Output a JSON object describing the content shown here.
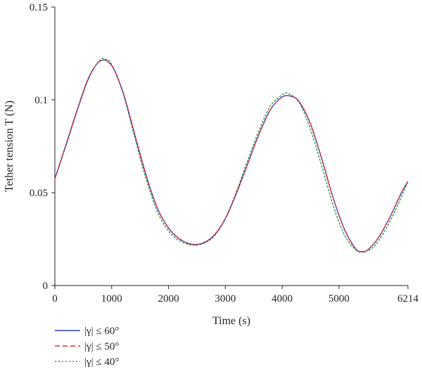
{
  "chart_data": {
    "type": "line",
    "title": "",
    "xlabel": "Time (s)",
    "ylabel": "Tether tension T (N)",
    "xlim": [
      0,
      6214
    ],
    "ylim": [
      0,
      0.15
    ],
    "x_ticks": [
      0,
      1000,
      2000,
      3000,
      4000,
      5000,
      6214
    ],
    "x_tick_labels": [
      "0",
      "1000",
      "2000",
      "3000",
      "4000",
      "5000",
      "6214"
    ],
    "y_ticks": [
      0,
      0.05,
      0.1,
      0.15
    ],
    "y_tick_labels": [
      "0",
      "0.05",
      "0.1",
      "0.15"
    ],
    "grid": false,
    "legend_position": "bottom-left",
    "series": [
      {
        "name": "|γ| ≤ 60°",
        "color": "#2c3fbf",
        "dash": "solid",
        "x": [
          0,
          200,
          400,
          600,
          800,
          1000,
          1200,
          1400,
          1600,
          1800,
          2000,
          2200,
          2400,
          2600,
          2800,
          3000,
          3200,
          3400,
          3600,
          3800,
          4000,
          4150,
          4300,
          4500,
          4700,
          4900,
          5100,
          5300,
          5400,
          5500,
          5700,
          5900,
          6100,
          6214
        ],
        "y": [
          0.0575,
          0.076,
          0.095,
          0.112,
          0.121,
          0.1185,
          0.104,
          0.082,
          0.06,
          0.042,
          0.031,
          0.025,
          0.0223,
          0.0228,
          0.027,
          0.036,
          0.05,
          0.066,
          0.082,
          0.095,
          0.1015,
          0.102,
          0.099,
          0.087,
          0.068,
          0.047,
          0.03,
          0.0195,
          0.0182,
          0.019,
          0.026,
          0.037,
          0.05,
          0.056
        ]
      },
      {
        "name": "|γ| ≤ 50°",
        "color": "#e32b3a",
        "dash": "dashed",
        "x": [
          0,
          200,
          400,
          600,
          800,
          1000,
          1200,
          1400,
          1600,
          1800,
          2000,
          2200,
          2400,
          2600,
          2800,
          3000,
          3200,
          3400,
          3600,
          3800,
          4000,
          4150,
          4300,
          4500,
          4700,
          4900,
          5100,
          5300,
          5400,
          5500,
          5700,
          5900,
          6100,
          6214
        ],
        "y": [
          0.0575,
          0.076,
          0.095,
          0.112,
          0.121,
          0.1185,
          0.104,
          0.082,
          0.06,
          0.042,
          0.031,
          0.025,
          0.0223,
          0.0228,
          0.027,
          0.036,
          0.05,
          0.066,
          0.082,
          0.095,
          0.1015,
          0.102,
          0.099,
          0.087,
          0.068,
          0.047,
          0.03,
          0.0195,
          0.0182,
          0.019,
          0.026,
          0.037,
          0.05,
          0.056
        ]
      },
      {
        "name": "|γ| ≤ 40°",
        "color": "#2a9a4a",
        "dash": "dotted",
        "x": [
          0,
          200,
          400,
          600,
          800,
          900,
          1000,
          1200,
          1400,
          1600,
          1800,
          2000,
          2200,
          2400,
          2600,
          2800,
          3000,
          3200,
          3400,
          3600,
          3800,
          4000,
          4100,
          4300,
          4500,
          4700,
          4900,
          5100,
          5300,
          5450,
          5600,
          5800,
          6000,
          6214
        ],
        "y": [
          0.0575,
          0.0765,
          0.0955,
          0.1125,
          0.1215,
          0.1218,
          0.119,
          0.1035,
          0.0805,
          0.058,
          0.04,
          0.0295,
          0.024,
          0.0218,
          0.0225,
          0.0265,
          0.036,
          0.051,
          0.068,
          0.084,
          0.097,
          0.1025,
          0.1035,
          0.0985,
          0.084,
          0.064,
          0.043,
          0.027,
          0.0192,
          0.0185,
          0.0205,
          0.029,
          0.041,
          0.056
        ]
      }
    ]
  }
}
